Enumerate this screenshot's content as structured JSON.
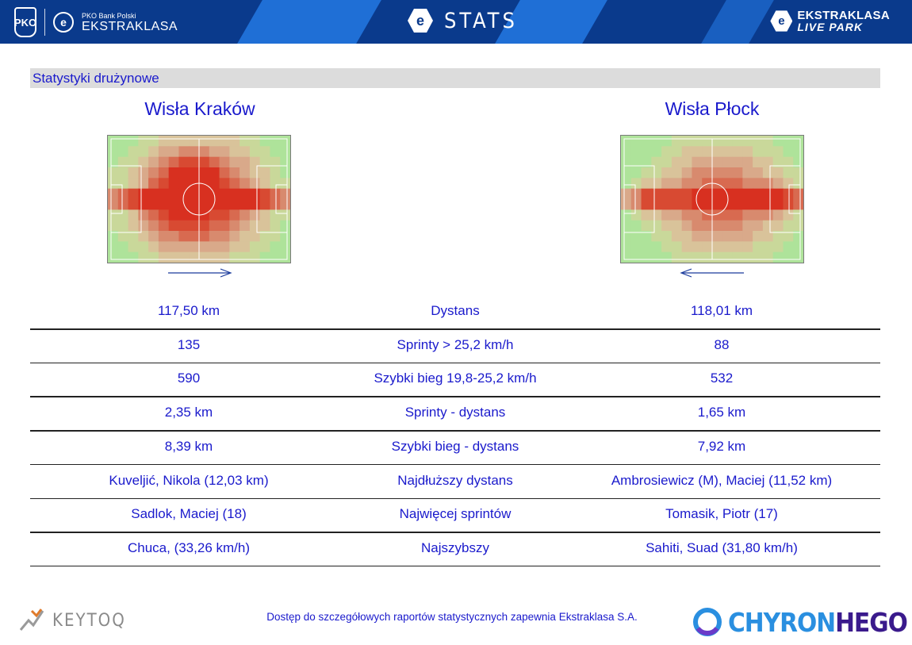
{
  "header": {
    "pko_mark": "PKO",
    "pko_line": "PKO Bank Polski",
    "league_name": "EKSTRAKLASA",
    "stats_title": "STATS",
    "live_park_top": "EKSTRAKLASA",
    "live_park_bottom": "LIVE PARK",
    "badge_letter": "e",
    "colors": {
      "dark": "#0a3a8c",
      "light": "#1f6fd6"
    }
  },
  "section": {
    "title": "Statystyki drużynowe"
  },
  "teams": {
    "home": {
      "name": "Wisła Kraków",
      "direction": "right"
    },
    "away": {
      "name": "Wisła Płock",
      "direction": "left"
    }
  },
  "stats": [
    {
      "home": "117,50 km",
      "label": "Dystans",
      "away": "118,01 km"
    },
    {
      "home": "135",
      "label": "Sprinty > 25,2 km/h",
      "away": "88"
    },
    {
      "home": "590",
      "label": "Szybki bieg 19,8-25,2 km/h",
      "away": "532"
    },
    {
      "home": "2,35 km",
      "label": "Sprinty - dystans",
      "away": "1,65 km"
    },
    {
      "home": "8,39 km",
      "label": "Szybki bieg - dystans",
      "away": "7,92 km"
    },
    {
      "home": "Kuveljić, Nikola (12,03 km)",
      "label": "Najdłuższy dystans",
      "away": "Ambrosiewicz (M), Maciej (11,52 km)"
    },
    {
      "home": "Sadlok, Maciej (18)",
      "label": "Najwięcej sprintów",
      "away": "Tomasik, Piotr (17)"
    },
    {
      "home": "Chuca,  (33,26 km/h)",
      "label": "Najszybszy",
      "away": "Sahiti, Suad (31,80 km/h)"
    }
  ],
  "footer": {
    "keytoq": "KEYTOQ",
    "note": "Dostęp do szczegółowych raportów statystycznych zapewnia Ekstraklasa S.A.",
    "chyron_a": "CHYRON",
    "chyron_b": "HEGO"
  },
  "colors": {
    "text_blue": "#1a1acc",
    "section_bg": "#dcdcdc"
  }
}
